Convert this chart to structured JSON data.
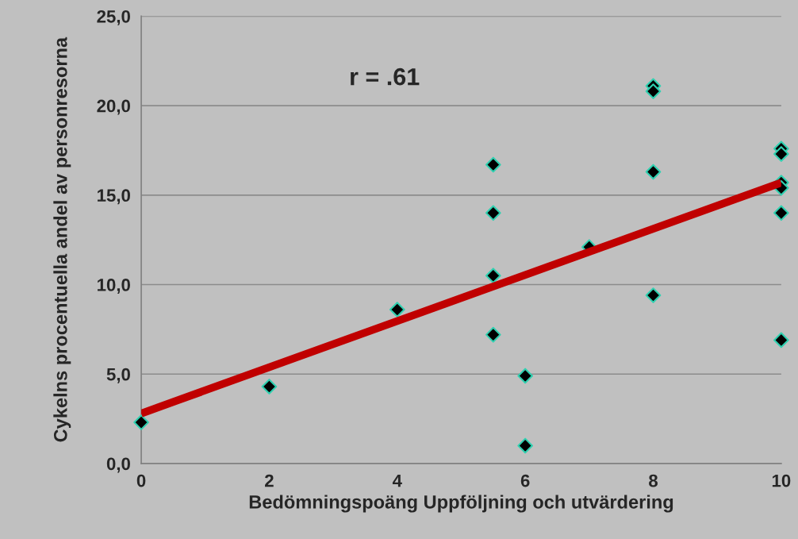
{
  "chart_data": {
    "type": "scatter",
    "xlabel": "Bedömningspoäng Uppföljning och utvärdering",
    "ylabel": "Cykelns procentuella andel av personresorna",
    "annotations": [
      "r = .61"
    ],
    "series": [
      {
        "color": "#000000",
        "marker": "diamond",
        "x": [
          0,
          2,
          4,
          5.5,
          5.5,
          5.5,
          5.5,
          6,
          6,
          7,
          8,
          8,
          8,
          8,
          10,
          10,
          10,
          10,
          10,
          10
        ],
        "values": [
          2.3,
          4.3,
          8.6,
          16.7,
          14.0,
          10.5,
          7.2,
          4.9,
          1.0,
          12.1,
          21.1,
          20.8,
          16.3,
          9.4,
          17.6,
          17.3,
          15.7,
          15.4,
          14.0,
          6.9
        ]
      },
      {
        "type": "line",
        "color": "#c00000",
        "x": [
          0,
          10
        ],
        "values": [
          2.8,
          15.7
        ]
      }
    ],
    "xlim": [
      0,
      10
    ],
    "xticks": [
      0,
      2,
      4,
      6,
      8,
      10
    ],
    "ylim": [
      0,
      25
    ],
    "yticks": [
      {
        "value": 0,
        "label": "0,0"
      },
      {
        "value": 5,
        "label": "5,0"
      },
      {
        "value": 10,
        "label": "10,0"
      },
      {
        "value": 15,
        "label": "15,0"
      },
      {
        "value": 20,
        "label": "20,0"
      },
      {
        "value": 25,
        "label": "25,0"
      }
    ],
    "grid": "y",
    "legend": false
  }
}
